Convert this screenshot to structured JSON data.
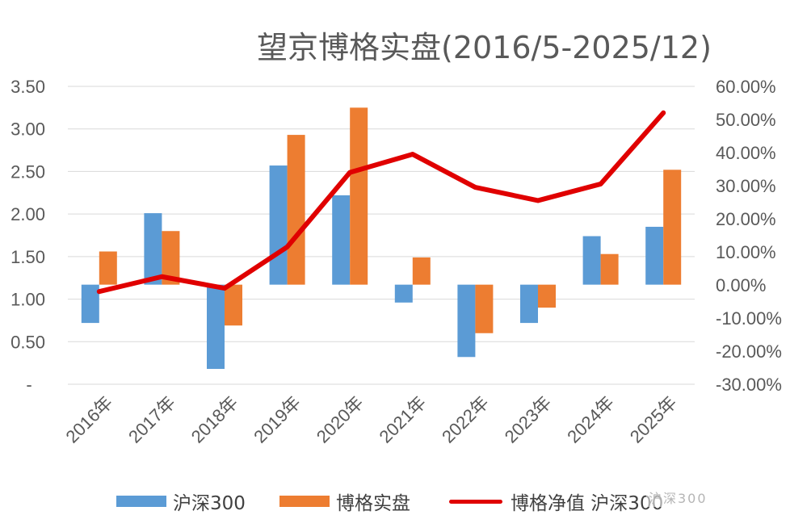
{
  "chart_data": {
    "type": "bar+line",
    "title": "望京博格实盘(2016/5-2025/12)",
    "categories": [
      "2016年",
      "2017年",
      "2018年",
      "2019年",
      "2020年",
      "2021年",
      "2022年",
      "2023年",
      "2024年",
      "2025年"
    ],
    "y_left": {
      "ticks": [
        "3.50",
        "3.00",
        "2.50",
        "2.00",
        "1.50",
        "1.00",
        "0.50",
        "-"
      ],
      "tick_values": [
        3.5,
        3.0,
        2.5,
        2.0,
        1.5,
        1.0,
        0.5,
        0.0
      ],
      "range": [
        0,
        3.5
      ],
      "baseline": 1.17
    },
    "y_right": {
      "ticks": [
        "60.00%",
        "50.00%",
        "40.00%",
        "30.00%",
        "20.00%",
        "10.00%",
        "0.00%",
        "-10.00%",
        "-20.00%",
        "-30.00%"
      ],
      "tick_values": [
        60,
        50,
        40,
        30,
        20,
        10,
        0,
        -10,
        -20,
        -30
      ],
      "range": [
        -30,
        60
      ]
    },
    "series": [
      {
        "name": "沪深300",
        "kind": "bar",
        "color": "#5B9BD5",
        "values": [
          0.72,
          2.01,
          0.18,
          2.57,
          2.22,
          0.96,
          0.32,
          0.72,
          1.74,
          1.85
        ]
      },
      {
        "name": "博格实盘",
        "kind": "bar",
        "color": "#ED7D31",
        "values": [
          1.56,
          1.8,
          0.69,
          2.93,
          3.25,
          1.49,
          0.6,
          0.9,
          1.53,
          2.52
        ]
      },
      {
        "name": "博格净值 沪深300",
        "kind": "line",
        "color": "#E00000",
        "axis": "right",
        "values": [
          -2.0,
          2.5,
          -1.0,
          11.5,
          34.0,
          39.5,
          29.5,
          25.5,
          30.5,
          52.0
        ]
      }
    ],
    "legend": [
      "沪深300",
      "博格实盘",
      "博格净值 沪深300"
    ],
    "legend_position": "bottom"
  },
  "watermark": "沪深300"
}
